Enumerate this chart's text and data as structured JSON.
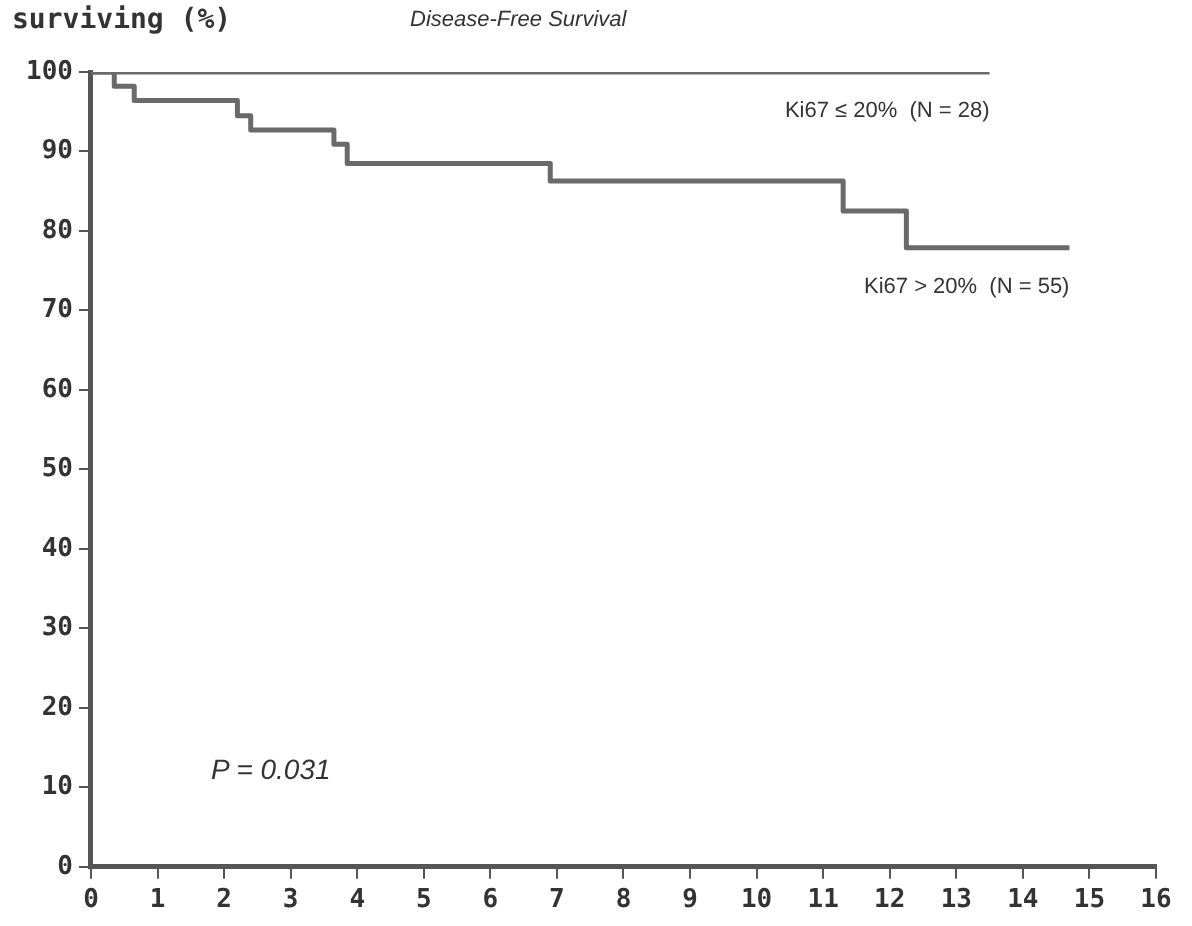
{
  "chart_data": {
    "type": "step",
    "title": "Disease-Free Survival",
    "ylabel": "surviving (%)",
    "xlim": [
      0,
      16
    ],
    "xticks": [
      0,
      1,
      2,
      3,
      4,
      5,
      6,
      7,
      8,
      9,
      10,
      11,
      12,
      13,
      14,
      15,
      16
    ],
    "ylim": [
      0,
      100
    ],
    "yticks": [
      0,
      10,
      20,
      30,
      40,
      50,
      60,
      70,
      80,
      90,
      100
    ],
    "grid": false,
    "legend": false,
    "marker": "none",
    "line_style": "solid",
    "series": [
      {
        "name": "Ki67 ≤ 20%  (N = 28)",
        "color": "#6a6a6a",
        "x": [
          0,
          13.5
        ],
        "values": [
          100,
          100
        ]
      },
      {
        "name": "Ki67 > 20%  (N = 55)",
        "color": "#6a6a6a",
        "x": [
          0,
          0.35,
          0.65,
          2.2,
          2.4,
          3.65,
          3.85,
          6.9,
          11.3,
          12.25,
          14.7
        ],
        "values": [
          100,
          98.2,
          96.4,
          94.5,
          92.7,
          90.9,
          88.5,
          86.3,
          82.5,
          77.9,
          77.9
        ]
      }
    ],
    "annotations": [
      "P = 0.031"
    ]
  }
}
